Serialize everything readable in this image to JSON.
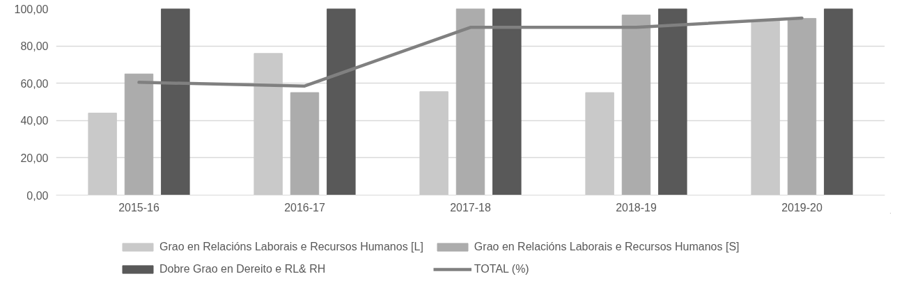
{
  "chart_data": {
    "type": "bar",
    "categories": [
      "2015-16",
      "2016-17",
      "2017-18",
      "2018-19",
      "2019-20"
    ],
    "series": [
      {
        "name": "Grao en Relacións Laborais e Recursos Humanos [L]",
        "color": "#c9c9c9",
        "values": [
          44,
          76,
          55.5,
          55,
          94
        ]
      },
      {
        "name": "Grao en Relacións Laborais e Recursos Humanos [S]",
        "color": "#acacac",
        "values": [
          65,
          55,
          100,
          96.6,
          94.8
        ]
      },
      {
        "name": "Dobre Grao en Dereito e RL& RH",
        "color": "#595959",
        "values": [
          100,
          100,
          100,
          100,
          100
        ]
      },
      {
        "name": "TOTAL (%)",
        "type": "line",
        "color": "#808080",
        "values": [
          60.5,
          58.5,
          90,
          90,
          95
        ]
      }
    ],
    "ylim": [
      0,
      100
    ],
    "yticks": [
      {
        "value": 0,
        "label": "0,00"
      },
      {
        "value": 20,
        "label": "20,00"
      },
      {
        "value": 40,
        "label": "40,00"
      },
      {
        "value": 60,
        "label": "60,00"
      },
      {
        "value": 80,
        "label": "80,00"
      },
      {
        "value": 100,
        "label": "100,00"
      }
    ],
    "grid": "y",
    "legend": "bottom"
  }
}
